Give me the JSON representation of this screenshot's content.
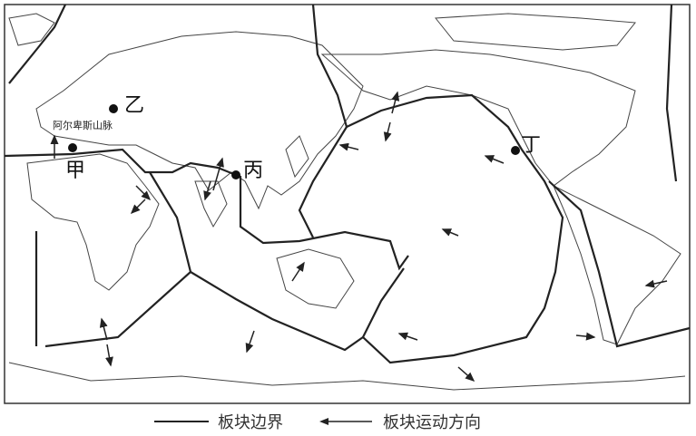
{
  "map": {
    "labels": {
      "jia": "甲",
      "yi": "乙",
      "bing": "丙",
      "ding": "丁",
      "alps": "阿尔卑斯山脉"
    },
    "colors": {
      "line": "#222222",
      "background": "#ffffff"
    }
  },
  "legend": {
    "boundary_label": "板块边界",
    "direction_label": "板块运动方向"
  }
}
